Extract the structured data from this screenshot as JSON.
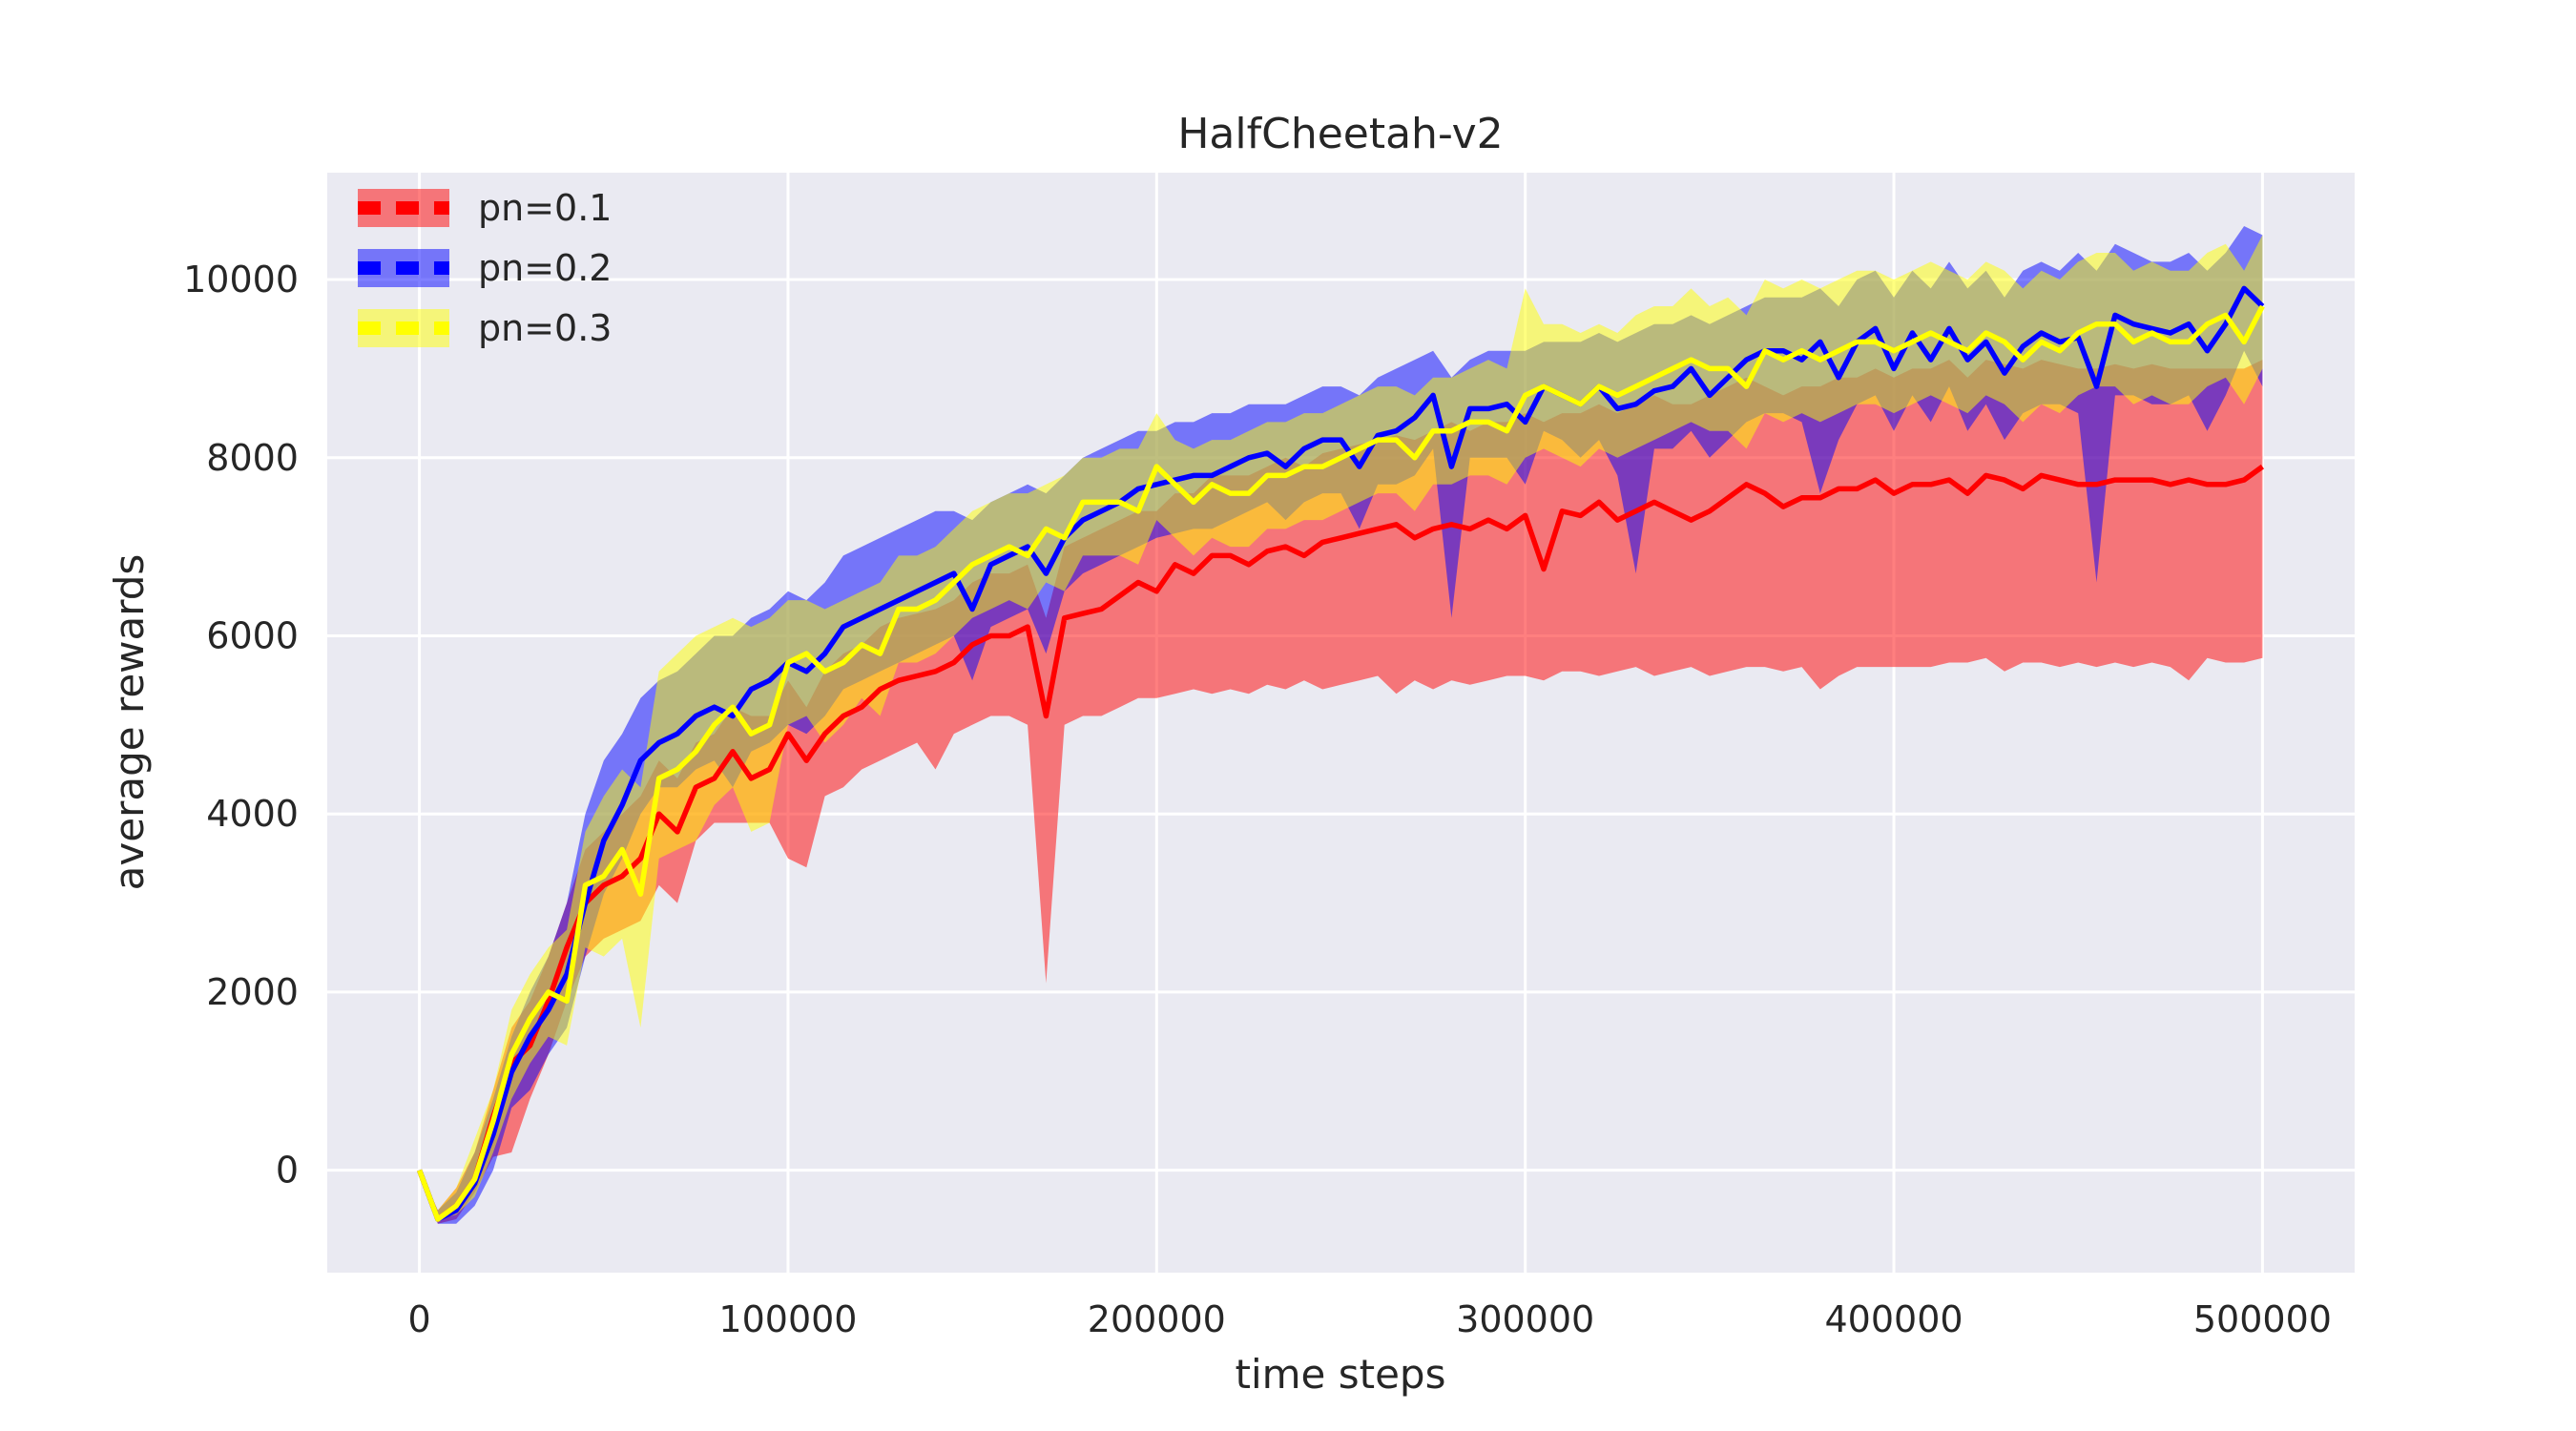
{
  "chart_data": {
    "type": "line",
    "title": "HalfCheetah-v2",
    "xlabel": "time steps",
    "ylabel": "average rewards",
    "xlim": [
      -25000,
      525000
    ],
    "ylim": [
      -1150,
      11200
    ],
    "xticks": [
      0,
      100000,
      200000,
      300000,
      400000,
      500000
    ],
    "yticks": [
      0,
      2000,
      4000,
      6000,
      8000,
      10000
    ],
    "grid": true,
    "legend_position": "top-left",
    "background": "#eaeaf2",
    "x": [
      0,
      5000,
      10000,
      15000,
      20000,
      25000,
      30000,
      35000,
      40000,
      45000,
      50000,
      55000,
      60000,
      65000,
      70000,
      75000,
      80000,
      85000,
      90000,
      95000,
      100000,
      105000,
      110000,
      115000,
      120000,
      125000,
      130000,
      135000,
      140000,
      145000,
      150000,
      155000,
      160000,
      165000,
      170000,
      175000,
      180000,
      185000,
      190000,
      195000,
      200000,
      205000,
      210000,
      215000,
      220000,
      225000,
      230000,
      235000,
      240000,
      245000,
      250000,
      255000,
      260000,
      265000,
      270000,
      275000,
      280000,
      285000,
      290000,
      295000,
      300000,
      305000,
      310000,
      315000,
      320000,
      325000,
      330000,
      335000,
      340000,
      345000,
      350000,
      355000,
      360000,
      365000,
      370000,
      375000,
      380000,
      385000,
      390000,
      395000,
      400000,
      405000,
      410000,
      415000,
      420000,
      425000,
      430000,
      435000,
      440000,
      445000,
      450000,
      455000,
      460000,
      465000,
      470000,
      475000,
      480000,
      485000,
      490000,
      495000,
      500000
    ],
    "series": [
      {
        "name": "pn=0.1",
        "color": "#ff0000",
        "fill_opacity": 0.5,
        "mean": [
          0,
          -550,
          -400,
          -100,
          600,
          1200,
          1400,
          1900,
          2500,
          3000,
          3200,
          3300,
          3500,
          4000,
          3800,
          4300,
          4400,
          4700,
          4400,
          4500,
          4900,
          4600,
          4900,
          5100,
          5200,
          5400,
          5500,
          5550,
          5600,
          5700,
          5900,
          6000,
          6000,
          6100,
          5100,
          6200,
          6250,
          6300,
          6450,
          6600,
          6500,
          6800,
          6700,
          6900,
          6900,
          6800,
          6950,
          7000,
          6900,
          7050,
          7100,
          7150,
          7200,
          7250,
          7100,
          7200,
          7250,
          7200,
          7300,
          7200,
          7350,
          6750,
          7400,
          7350,
          7500,
          7300,
          7400,
          7500,
          7400,
          7300,
          7400,
          7550,
          7700,
          7600,
          7450,
          7550,
          7550,
          7650,
          7650,
          7750,
          7600,
          7700,
          7700,
          7750,
          7600,
          7800,
          7750,
          7650,
          7800,
          7750,
          7700,
          7700,
          7750,
          7750,
          7750,
          7700,
          7750,
          7700,
          7700,
          7750,
          7900
        ],
        "upper": [
          0,
          -450,
          -200,
          200,
          900,
          1600,
          1900,
          2400,
          3000,
          3600,
          3800,
          4000,
          4200,
          4600,
          4400,
          4800,
          4900,
          5200,
          5100,
          5100,
          5500,
          5200,
          5600,
          5800,
          5900,
          6100,
          6200,
          6250,
          6300,
          6400,
          6600,
          6700,
          6700,
          6800,
          6200,
          7000,
          7100,
          7200,
          7300,
          7400,
          7400,
          7600,
          7600,
          7800,
          7800,
          7800,
          7900,
          8000,
          7900,
          8050,
          8100,
          8150,
          8200,
          8250,
          8200,
          8300,
          8400,
          8300,
          8400,
          8400,
          8500,
          8400,
          8500,
          8500,
          8600,
          8500,
          8600,
          8700,
          8600,
          8600,
          8700,
          8800,
          8900,
          8800,
          8700,
          8800,
          8800,
          8900,
          8900,
          9000,
          8900,
          9000,
          9000,
          9100,
          8900,
          9100,
          9050,
          9000,
          9100,
          9050,
          9000,
          9000,
          9050,
          9000,
          9050,
          9000,
          9000,
          9000,
          9000,
          9000,
          9100
        ],
        "lower": [
          0,
          -600,
          -550,
          -250,
          150,
          200,
          800,
          1300,
          1900,
          2400,
          2600,
          2700,
          2800,
          3200,
          3000,
          3700,
          3900,
          3900,
          3900,
          3900,
          3500,
          3400,
          4200,
          4300,
          4500,
          4600,
          4700,
          4800,
          4500,
          4900,
          5000,
          5100,
          5100,
          5000,
          2100,
          5000,
          5100,
          5100,
          5200,
          5300,
          5300,
          5350,
          5400,
          5350,
          5400,
          5350,
          5450,
          5400,
          5500,
          5400,
          5450,
          5500,
          5550,
          5350,
          5500,
          5400,
          5500,
          5450,
          5500,
          5550,
          5550,
          5500,
          5600,
          5600,
          5550,
          5600,
          5650,
          5550,
          5600,
          5650,
          5550,
          5600,
          5650,
          5650,
          5600,
          5650,
          5400,
          5550,
          5650,
          5650,
          5650,
          5650,
          5650,
          5700,
          5700,
          5750,
          5600,
          5700,
          5700,
          5650,
          5700,
          5650,
          5700,
          5650,
          5700,
          5650,
          5500,
          5750,
          5700,
          5700,
          5750
        ]
      },
      {
        "name": "pn=0.2",
        "color": "#0000ff",
        "fill_opacity": 0.5,
        "mean": [
          0,
          -550,
          -450,
          -150,
          400,
          1100,
          1500,
          1800,
          2200,
          3000,
          3700,
          4100,
          4600,
          4800,
          4900,
          5100,
          5200,
          5100,
          5400,
          5500,
          5700,
          5600,
          5800,
          6100,
          6200,
          6300,
          6400,
          6500,
          6600,
          6700,
          6300,
          6800,
          6900,
          7000,
          6700,
          7100,
          7300,
          7400,
          7500,
          7650,
          7700,
          7750,
          7800,
          7800,
          7900,
          8000,
          8050,
          7900,
          8100,
          8200,
          8200,
          7900,
          8250,
          8300,
          8450,
          8700,
          7900,
          8550,
          8550,
          8600,
          8400,
          8800,
          8700,
          8600,
          8800,
          8550,
          8600,
          8750,
          8800,
          9000,
          8700,
          8900,
          9100,
          9200,
          9200,
          9100,
          9300,
          8900,
          9300,
          9450,
          9000,
          9400,
          9100,
          9450,
          9100,
          9300,
          8950,
          9250,
          9400,
          9300,
          9350,
          8800,
          9600,
          9500,
          9450,
          9400,
          9500,
          9200,
          9500,
          9900,
          9700
        ],
        "upper": [
          0,
          -450,
          -250,
          200,
          800,
          1500,
          2000,
          2400,
          3000,
          4000,
          4600,
          4900,
          5300,
          5500,
          5600,
          5800,
          6000,
          6000,
          6200,
          6300,
          6500,
          6400,
          6600,
          6900,
          7000,
          7100,
          7200,
          7300,
          7400,
          7400,
          7300,
          7500,
          7600,
          7700,
          7600,
          7800,
          8000,
          8100,
          8200,
          8300,
          8300,
          8400,
          8400,
          8500,
          8500,
          8600,
          8600,
          8600,
          8700,
          8800,
          8800,
          8700,
          8900,
          9000,
          9100,
          9200,
          8900,
          9100,
          9200,
          9200,
          9200,
          9300,
          9300,
          9300,
          9400,
          9300,
          9400,
          9500,
          9500,
          9600,
          9500,
          9600,
          9700,
          9800,
          9800,
          9800,
          9900,
          9700,
          10000,
          10100,
          9800,
          10100,
          9900,
          10200,
          9900,
          10100,
          9800,
          10100,
          10200,
          10100,
          10300,
          10100,
          10400,
          10300,
          10200,
          10200,
          10300,
          10100,
          10300,
          10600,
          10500
        ],
        "lower": [
          0,
          -600,
          -600,
          -400,
          0,
          700,
          900,
          1300,
          1600,
          2400,
          3100,
          3500,
          4000,
          4300,
          4300,
          4500,
          4600,
          4300,
          4700,
          4800,
          5000,
          4900,
          5100,
          5400,
          5500,
          5600,
          5700,
          5800,
          5900,
          6000,
          5500,
          6100,
          6200,
          6300,
          5800,
          6500,
          6700,
          6800,
          6900,
          7000,
          7100,
          7150,
          7200,
          7200,
          7300,
          7400,
          7500,
          7300,
          7500,
          7600,
          7600,
          7200,
          7700,
          7700,
          7800,
          8100,
          6200,
          8000,
          8000,
          8000,
          7700,
          8300,
          8200,
          8000,
          8200,
          7800,
          6700,
          8100,
          8100,
          8300,
          8000,
          8200,
          8400,
          8500,
          8500,
          8400,
          7600,
          8200,
          8600,
          8700,
          8300,
          8700,
          8400,
          8800,
          8300,
          8600,
          8200,
          8500,
          8600,
          8600,
          8500,
          6600,
          8700,
          8700,
          8600,
          8600,
          8700,
          8300,
          8700,
          9200,
          8800
        ]
      },
      {
        "name": "pn=0.3",
        "color": "#ffff00",
        "fill_opacity": 0.5,
        "mean": [
          0,
          -550,
          -400,
          -100,
          550,
          1300,
          1700,
          2000,
          1900,
          3200,
          3300,
          3600,
          3100,
          4400,
          4500,
          4700,
          5000,
          5200,
          4900,
          5000,
          5700,
          5800,
          5600,
          5700,
          5900,
          5800,
          6300,
          6300,
          6400,
          6600,
          6800,
          6900,
          7000,
          6900,
          7200,
          7100,
          7500,
          7500,
          7500,
          7400,
          7900,
          7700,
          7500,
          7700,
          7600,
          7600,
          7800,
          7800,
          7900,
          7900,
          8000,
          8100,
          8200,
          8200,
          8000,
          8300,
          8300,
          8400,
          8400,
          8300,
          8700,
          8800,
          8700,
          8600,
          8800,
          8700,
          8800,
          8900,
          9000,
          9100,
          9000,
          9000,
          8800,
          9200,
          9100,
          9200,
          9100,
          9200,
          9300,
          9300,
          9200,
          9300,
          9400,
          9300,
          9200,
          9400,
          9300,
          9100,
          9300,
          9200,
          9400,
          9500,
          9500,
          9300,
          9400,
          9300,
          9300,
          9500,
          9600,
          9300,
          9700
        ],
        "upper": [
          0,
          -450,
          -200,
          350,
          900,
          1800,
          2200,
          2500,
          2700,
          3800,
          4200,
          4500,
          4300,
          5600,
          5800,
          6000,
          6100,
          6200,
          6100,
          6200,
          6400,
          6400,
          6300,
          6400,
          6500,
          6600,
          6900,
          6900,
          7000,
          7200,
          7400,
          7500,
          7600,
          7600,
          7700,
          7800,
          8000,
          8000,
          8100,
          8100,
          8500,
          8200,
          8100,
          8200,
          8200,
          8300,
          8400,
          8400,
          8500,
          8500,
          8600,
          8700,
          8800,
          8800,
          8700,
          8900,
          8900,
          9000,
          9100,
          9000,
          9900,
          9500,
          9500,
          9400,
          9500,
          9400,
          9600,
          9700,
          9700,
          9900,
          9700,
          9800,
          9600,
          10000,
          9900,
          10000,
          9900,
          10000,
          10100,
          10100,
          10000,
          10100,
          10200,
          10100,
          10000,
          10200,
          10100,
          9900,
          10100,
          10000,
          10200,
          10300,
          10300,
          10100,
          10200,
          10100,
          10100,
          10300,
          10400,
          10100,
          10500
        ],
        "lower": [
          0,
          -550,
          -500,
          -300,
          200,
          800,
          1200,
          1500,
          1400,
          2500,
          2400,
          2600,
          1600,
          3500,
          3600,
          3700,
          4100,
          4300,
          3800,
          3900,
          5000,
          5100,
          4800,
          5000,
          5300,
          5100,
          5700,
          5700,
          5800,
          6000,
          6200,
          6300,
          6400,
          6300,
          6600,
          6500,
          6900,
          6900,
          6900,
          6800,
          7300,
          7100,
          6900,
          7100,
          7000,
          7000,
          7200,
          7200,
          7300,
          7300,
          7400,
          7500,
          7600,
          7600,
          7400,
          7700,
          7700,
          7800,
          7800,
          7700,
          8000,
          8100,
          8000,
          7900,
          8100,
          8000,
          8100,
          8200,
          8300,
          8400,
          8300,
          8300,
          8100,
          8500,
          8400,
          8500,
          8400,
          8500,
          8600,
          8600,
          8500,
          8600,
          8700,
          8600,
          8500,
          8700,
          8600,
          8400,
          8600,
          8500,
          8700,
          8800,
          8800,
          8600,
          8700,
          8600,
          8600,
          8800,
          8900,
          8600,
          9000
        ]
      }
    ]
  }
}
